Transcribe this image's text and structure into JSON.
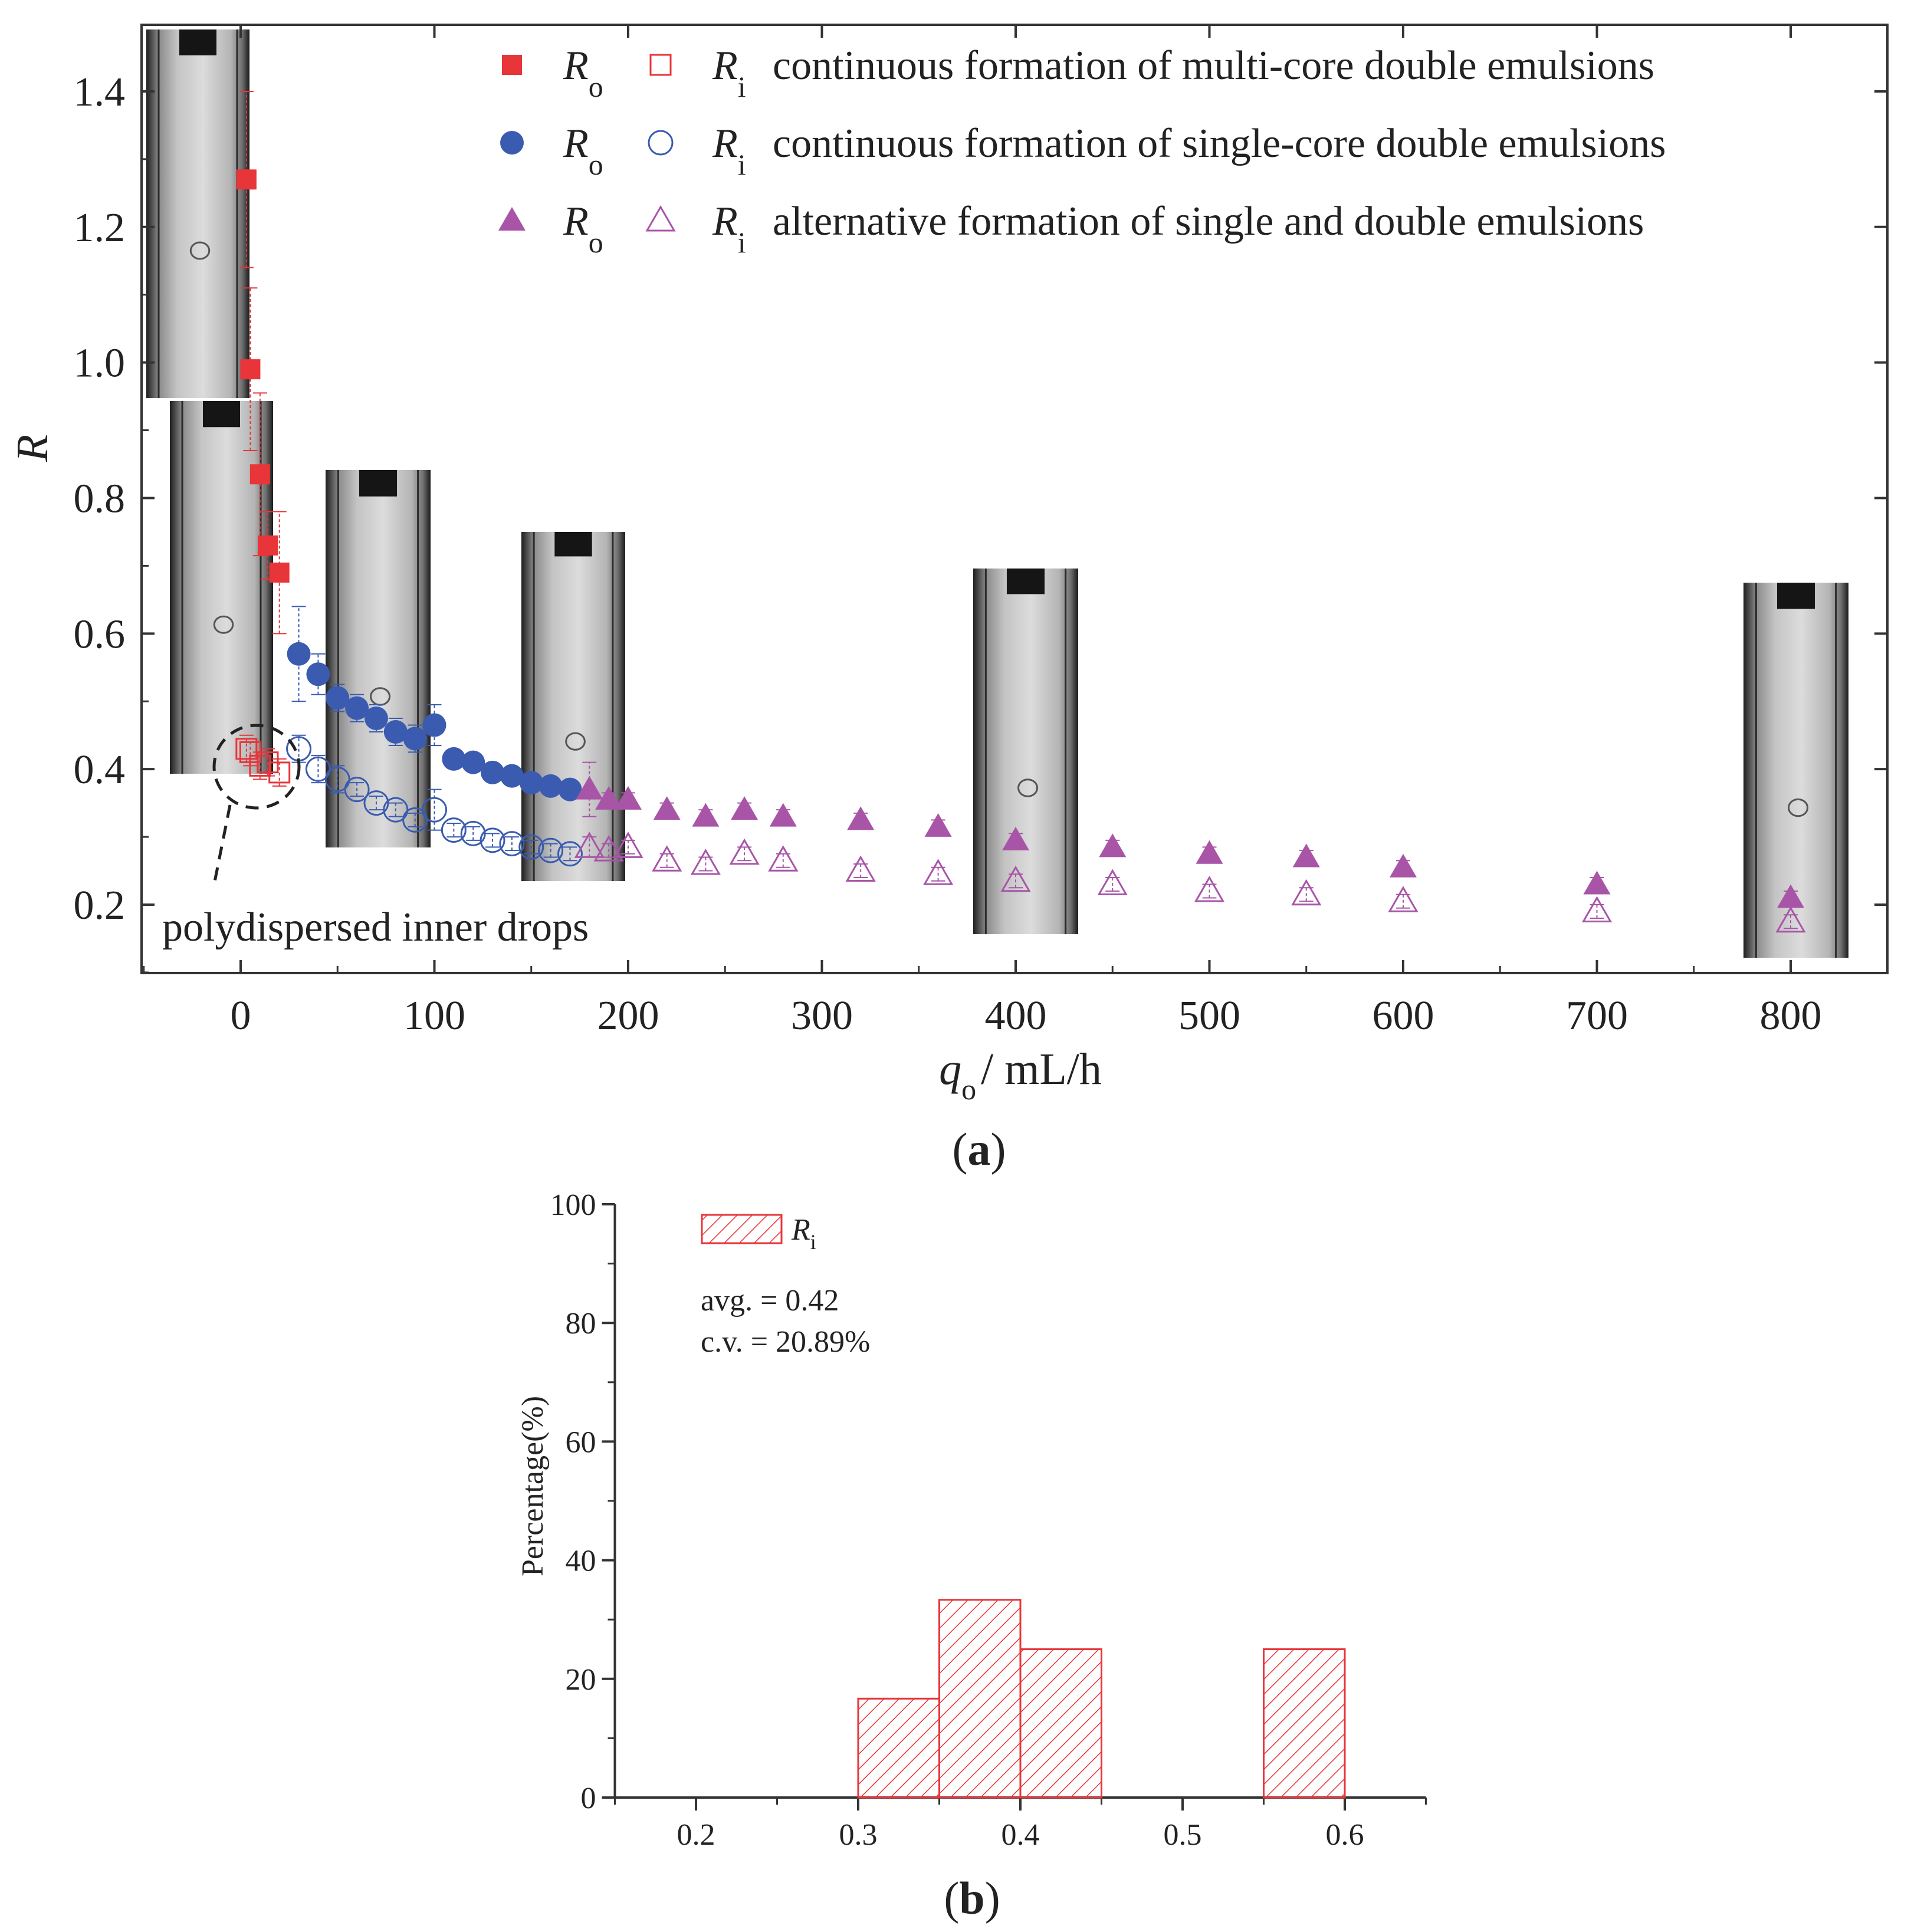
{
  "figure_a": {
    "caption_open": "(",
    "caption_letter": "a",
    "caption_close": ")",
    "annotation": "polydispersed inner drops",
    "chart_data": {
      "type": "scatter",
      "title": "",
      "xlabel_symbol": "q",
      "xlabel_sub": "o",
      "xlabel_units": "/ mL/h",
      "ylabel": "R",
      "xlim": [
        -50,
        850
      ],
      "ylim": [
        0.1,
        1.5
      ],
      "x_ticks": [
        0,
        100,
        200,
        300,
        400,
        500,
        600,
        700,
        800
      ],
      "y_ticks": [
        0.2,
        0.4,
        0.6,
        0.8,
        1.0,
        1.2,
        1.4
      ],
      "x_tick_labels": [
        "0",
        "100",
        "200",
        "300",
        "400",
        "500",
        "600",
        "700",
        "800"
      ],
      "y_tick_labels": [
        "0.2",
        "0.4",
        "0.6",
        "0.8",
        "1.0",
        "1.2",
        "1.4"
      ],
      "legend": [
        {
          "ro_symbol": "R",
          "ro_sub": "o",
          "ri_symbol": "R",
          "ri_sub": "i",
          "text": "continuous formation of multi-core double emulsions",
          "color": "#e8353a"
        },
        {
          "ro_symbol": "R",
          "ro_sub": "o",
          "ri_symbol": "R",
          "ri_sub": "i",
          "text": "continuous formation of single-core double emulsions",
          "color": "#3a5bb0"
        },
        {
          "ro_symbol": "R",
          "ro_sub": "o",
          "ri_symbol": "R",
          "ri_sub": "i",
          "text": "alternative formation of single and double emulsions",
          "color": "#a855a8"
        }
      ],
      "series": [
        {
          "name": "R_o multi-core",
          "marker": "square-filled",
          "color": "#e8353a",
          "x": [
            3,
            5,
            10,
            14,
            20
          ],
          "y": [
            1.27,
            0.99,
            0.835,
            0.73,
            0.69
          ],
          "err": [
            0.13,
            0.12,
            0.12,
            0.05,
            0.09
          ]
        },
        {
          "name": "R_i multi-core",
          "marker": "square-open",
          "color": "#e8353a",
          "x": [
            3,
            5,
            10,
            14,
            20
          ],
          "y": [
            0.43,
            0.425,
            0.405,
            0.41,
            0.395
          ],
          "err": [
            0.02,
            0.02,
            0.02,
            0.02,
            0.02
          ]
        },
        {
          "name": "R_o single-core",
          "marker": "circle-filled",
          "color": "#3a5bb0",
          "x": [
            30,
            40,
            50,
            60,
            70,
            80,
            90,
            100,
            110,
            120,
            130,
            140,
            150,
            160,
            170
          ],
          "y": [
            0.57,
            0.54,
            0.505,
            0.49,
            0.475,
            0.455,
            0.445,
            0.465,
            0.415,
            0.41,
            0.395,
            0.39,
            0.38,
            0.375,
            0.37
          ],
          "err": [
            0.07,
            0.03,
            0.02,
            0.02,
            0.02,
            0.02,
            0.02,
            0.03,
            0.01,
            0.01,
            0.01,
            0.01,
            0.01,
            0.01,
            0.01
          ]
        },
        {
          "name": "R_i single-core",
          "marker": "circle-open",
          "color": "#3a5bb0",
          "x": [
            30,
            40,
            50,
            60,
            70,
            80,
            90,
            100,
            110,
            120,
            130,
            140,
            150,
            160,
            170
          ],
          "y": [
            0.43,
            0.4,
            0.385,
            0.37,
            0.35,
            0.34,
            0.325,
            0.34,
            0.31,
            0.305,
            0.295,
            0.29,
            0.285,
            0.28,
            0.275
          ],
          "err": [
            0.02,
            0.02,
            0.02,
            0.01,
            0.01,
            0.01,
            0.01,
            0.03,
            0.01,
            0.01,
            0.01,
            0.01,
            0.01,
            0.01,
            0.01
          ]
        },
        {
          "name": "R_o alternative",
          "marker": "triangle-filled",
          "color": "#a855a8",
          "x": [
            180,
            190,
            200,
            220,
            240,
            260,
            280,
            320,
            360,
            400,
            450,
            500,
            550,
            600,
            700,
            800
          ],
          "y": [
            0.37,
            0.355,
            0.355,
            0.34,
            0.33,
            0.34,
            0.33,
            0.325,
            0.315,
            0.295,
            0.285,
            0.275,
            0.27,
            0.255,
            0.23,
            0.21
          ],
          "err": [
            0.04,
            0.01,
            0.01,
            0.01,
            0.01,
            0.01,
            0.01,
            0.01,
            0.01,
            0.01,
            0.01,
            0.01,
            0.01,
            0.01,
            0.01,
            0.01
          ]
        },
        {
          "name": "R_i alternative",
          "marker": "triangle-open",
          "color": "#a855a8",
          "x": [
            180,
            190,
            200,
            220,
            240,
            260,
            280,
            320,
            360,
            400,
            450,
            500,
            550,
            600,
            700,
            800
          ],
          "y": [
            0.285,
            0.28,
            0.285,
            0.265,
            0.26,
            0.275,
            0.265,
            0.25,
            0.245,
            0.235,
            0.23,
            0.22,
            0.215,
            0.205,
            0.19,
            0.175
          ],
          "err": [
            0.015,
            0.01,
            0.01,
            0.01,
            0.01,
            0.01,
            0.01,
            0.01,
            0.01,
            0.01,
            0.01,
            0.01,
            0.01,
            0.01,
            0.01,
            0.01
          ]
        }
      ]
    }
  },
  "figure_b": {
    "caption_open": "(",
    "caption_letter": "b",
    "caption_close": ")",
    "legend_symbol": "R",
    "legend_sub": "i",
    "avg_text": "avg. = 0.42",
    "cv_text": "c.v. = 20.89%",
    "chart_data": {
      "type": "bar",
      "title": "",
      "xlabel": "",
      "ylabel": "Percentage(%)",
      "xlim": [
        0.15,
        0.65
      ],
      "ylim": [
        0,
        100
      ],
      "bin_width": 0.05,
      "x_ticks": [
        0.2,
        0.3,
        0.4,
        0.5,
        0.6
      ],
      "x_tick_labels": [
        "0.2",
        "0.3",
        "0.4",
        "0.5",
        "0.6"
      ],
      "y_ticks": [
        0,
        20,
        40,
        60,
        80,
        100
      ],
      "y_tick_labels": [
        "0",
        "20",
        "40",
        "60",
        "80",
        "100"
      ],
      "bins_left": [
        0.3,
        0.35,
        0.4,
        0.55
      ],
      "values": [
        16.67,
        33.33,
        25,
        25
      ],
      "series_name": "R_i",
      "color": "#e8353a"
    }
  }
}
